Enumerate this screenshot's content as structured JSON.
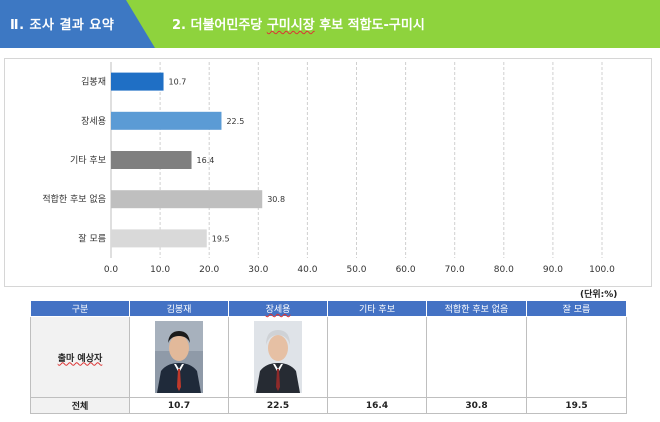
{
  "header": {
    "section": "Ⅱ. 조사 결과 요약",
    "title_prefix": "2. 더불어민주당",
    "title_underlined": "구미시장",
    "title_suffix": "후보 적합도-구미시"
  },
  "colors": {
    "header_blue": "#3d78c3",
    "header_green": "#8ed33d",
    "table_header": "#4472c4",
    "bar_colors": [
      "#1f6fc5",
      "#5b9bd5",
      "#7f7f7f",
      "#bfbfbf",
      "#d9d9d9"
    ]
  },
  "chart_data": {
    "type": "bar",
    "orientation": "horizontal",
    "categories": [
      "김봉재",
      "장세용",
      "기타 후보",
      "적합한 후보 없음",
      "잘 모름"
    ],
    "values": [
      10.7,
      22.5,
      16.4,
      30.8,
      19.5
    ],
    "value_labels": [
      "10.7",
      "22.5",
      "16.4",
      "30.8",
      "19.5"
    ],
    "xlim": [
      0,
      100
    ],
    "xticks": [
      "0.0",
      "10.0",
      "20.0",
      "30.0",
      "40.0",
      "50.0",
      "60.0",
      "70.0",
      "80.0",
      "90.0",
      "100.0"
    ],
    "grid": "vertical-dashed"
  },
  "unit_label": "(단위:%)",
  "table": {
    "headers": [
      "구분",
      "김봉재",
      "장세용",
      "기타 후보",
      "적합한 후보 없음",
      "잘 모름"
    ],
    "photo_row_label": "출마 예상자",
    "total_row": [
      "전체",
      "10.7",
      "22.5",
      "16.4",
      "30.8",
      "19.5"
    ]
  }
}
